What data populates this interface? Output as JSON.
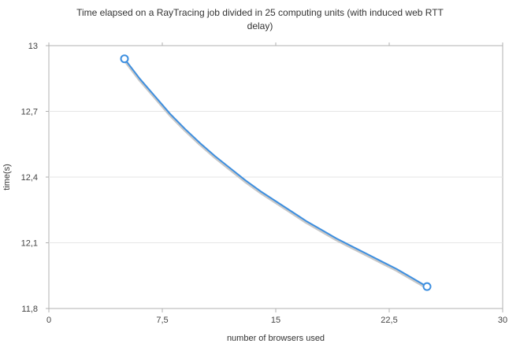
{
  "chart_data": {
    "type": "line",
    "title_lines": [
      "Time elapsed on a RayTracing job divided in 25 computing units (with induced web RTT",
      "delay)"
    ],
    "xlabel": "number of browsers used",
    "ylabel": "time(s)",
    "xlim": [
      0,
      30
    ],
    "ylim": [
      11.8,
      13
    ],
    "xticks": [
      0,
      7.5,
      15,
      22.5,
      30
    ],
    "xtick_labels": [
      "0",
      "7,5",
      "15",
      "22,5",
      "30"
    ],
    "yticks": [
      11.8,
      12.1,
      12.4,
      12.7,
      13
    ],
    "ytick_labels": [
      "11,8",
      "12,1",
      "12,4",
      "12,7",
      "13"
    ],
    "grid": true,
    "series": [
      {
        "color": "#3d8fe0",
        "points": [
          {
            "x": 5,
            "y": 12.94
          },
          {
            "x": 25,
            "y": 11.9
          }
        ],
        "curve": [
          {
            "x": 5,
            "y": 12.94
          },
          {
            "x": 6,
            "y": 12.85
          },
          {
            "x": 7,
            "y": 12.77
          },
          {
            "x": 8,
            "y": 12.69
          },
          {
            "x": 9,
            "y": 12.62
          },
          {
            "x": 10,
            "y": 12.555
          },
          {
            "x": 11,
            "y": 12.495
          },
          {
            "x": 12,
            "y": 12.44
          },
          {
            "x": 13,
            "y": 12.385
          },
          {
            "x": 14,
            "y": 12.335
          },
          {
            "x": 15,
            "y": 12.29
          },
          {
            "x": 16,
            "y": 12.245
          },
          {
            "x": 17,
            "y": 12.2
          },
          {
            "x": 18,
            "y": 12.16
          },
          {
            "x": 19,
            "y": 12.12
          },
          {
            "x": 20,
            "y": 12.085
          },
          {
            "x": 21,
            "y": 12.05
          },
          {
            "x": 22,
            "y": 12.015
          },
          {
            "x": 23,
            "y": 11.98
          },
          {
            "x": 24,
            "y": 11.94
          },
          {
            "x": 25,
            "y": 11.9
          }
        ]
      }
    ]
  }
}
